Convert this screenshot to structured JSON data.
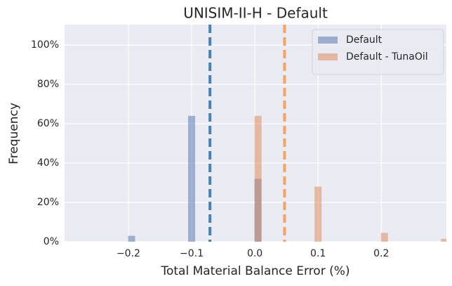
{
  "chart_data": {
    "type": "histogram",
    "title": "UNISIM-II-H - Default",
    "x_label": "Total Material Balance Error (%)",
    "y_label": "Frequency",
    "series": [
      {
        "name": "Default",
        "color": "#4c72b0",
        "mean_color": "#4682b4",
        "x": [
          -0.195,
          -0.1,
          0.005
        ],
        "values": [
          3,
          64,
          32
        ],
        "mean": -0.071
      },
      {
        "name": "Default - TunaOil",
        "color": "#dd8452",
        "mean_color": "#f4a460",
        "x": [
          0.005,
          0.1,
          0.205,
          0.3
        ],
        "values": [
          64,
          28,
          4.5,
          1.5
        ],
        "mean": 0.047
      }
    ],
    "xlim": [
      -0.301,
      0.303
    ],
    "xticks": [
      {
        "value": -0.2,
        "label": "−0.2"
      },
      {
        "value": -0.1,
        "label": "−0.1"
      },
      {
        "value": 0.0,
        "label": "0.0"
      },
      0.1,
      0.2
    ],
    "ylim": [
      0,
      110.4
    ],
    "yticks": [
      {
        "value": 0,
        "label": "0%"
      },
      {
        "value": 20,
        "label": "20%"
      },
      {
        "value": 40,
        "label": "40%"
      },
      {
        "value": 60,
        "label": "60%"
      },
      {
        "value": 80,
        "label": "80%"
      },
      {
        "value": 100,
        "label": "100%"
      }
    ],
    "grid": true,
    "legend": "upper right"
  }
}
